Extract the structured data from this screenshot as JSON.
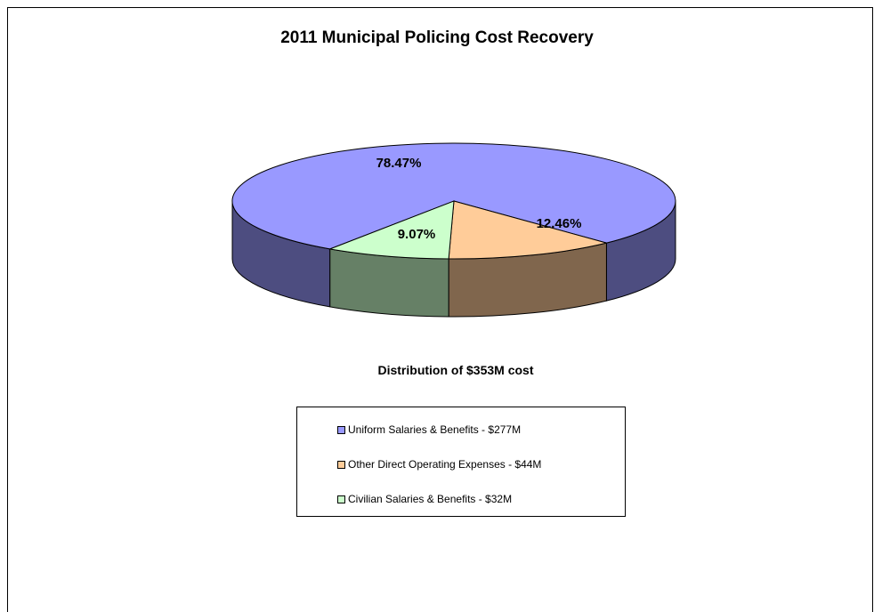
{
  "chart_data": {
    "type": "pie",
    "title": "2011 Municipal Policing Cost Recovery",
    "subtitle": "Distribution of $353M cost",
    "slices": [
      {
        "label": "Uniform Salaries & Benefits - $277M",
        "value": 78.47,
        "data_label": "78.47%",
        "color": "#9999ff",
        "side_color": "#4d4d80"
      },
      {
        "label": "Other Direct Operating Expenses - $44M",
        "value": 12.46,
        "data_label": "12.46%",
        "color": "#ffcc99",
        "side_color": "#80664d"
      },
      {
        "label": "Civilian Salaries & Benefits - $32M",
        "value": 9.07,
        "data_label": "9.07%",
        "color": "#ccffcc",
        "side_color": "#668066"
      }
    ],
    "legend_position": "bottom",
    "style": "3d"
  }
}
